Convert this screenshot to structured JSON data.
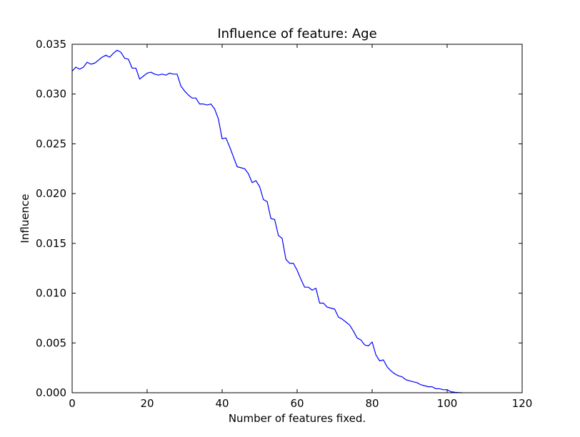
{
  "chart_data": {
    "type": "line",
    "title": "Influence of feature: Age",
    "xlabel": "Number of features fixed.",
    "ylabel": "Influence",
    "xlim": [
      0,
      120
    ],
    "ylim": [
      0,
      0.035
    ],
    "xticks": [
      0,
      20,
      40,
      60,
      80,
      100,
      120
    ],
    "xtick_labels": [
      "0",
      "20",
      "40",
      "60",
      "80",
      "100",
      "120"
    ],
    "yticks": [
      0,
      0.005,
      0.01,
      0.015,
      0.02,
      0.025,
      0.03,
      0.035
    ],
    "ytick_labels": [
      "0.000",
      "0.005",
      "0.010",
      "0.015",
      "0.020",
      "0.025",
      "0.030",
      "0.035"
    ],
    "grid": false,
    "series": [
      {
        "color": "#0000ff",
        "x": [
          0,
          1,
          2,
          3,
          4,
          5,
          6,
          7,
          8,
          9,
          10,
          11,
          12,
          13,
          14,
          15,
          16,
          17,
          18,
          19,
          20,
          21,
          22,
          23,
          24,
          25,
          26,
          27,
          28,
          29,
          30,
          31,
          32,
          33,
          34,
          35,
          36,
          37,
          38,
          39,
          40,
          41,
          42,
          43,
          44,
          45,
          46,
          47,
          48,
          49,
          50,
          51,
          52,
          53,
          54,
          55,
          56,
          57,
          58,
          59,
          60,
          61,
          62,
          63,
          64,
          65,
          66,
          67,
          68,
          69,
          70,
          71,
          72,
          73,
          74,
          75,
          76,
          77,
          78,
          79,
          80,
          81,
          82,
          83,
          84,
          85,
          86,
          87,
          88,
          89,
          90,
          91,
          92,
          93,
          94,
          95,
          96,
          97,
          98,
          99,
          100,
          101,
          102,
          103,
          104
        ],
        "y": [
          0.0323,
          0.0327,
          0.0325,
          0.0327,
          0.0332,
          0.033,
          0.0331,
          0.0334,
          0.0337,
          0.0339,
          0.0337,
          0.0341,
          0.0344,
          0.0342,
          0.0336,
          0.0335,
          0.0326,
          0.0326,
          0.0315,
          0.0318,
          0.0321,
          0.0322,
          0.032,
          0.0319,
          0.032,
          0.0319,
          0.0321,
          0.032,
          0.032,
          0.0308,
          0.0303,
          0.0299,
          0.0296,
          0.0296,
          0.029,
          0.029,
          0.0289,
          0.029,
          0.0285,
          0.0275,
          0.0255,
          0.0256,
          0.0247,
          0.0237,
          0.0227,
          0.0226,
          0.0225,
          0.022,
          0.0211,
          0.0213,
          0.0207,
          0.0194,
          0.0192,
          0.0175,
          0.0174,
          0.0158,
          0.0155,
          0.0134,
          0.013,
          0.013,
          0.0123,
          0.0114,
          0.0106,
          0.0106,
          0.0103,
          0.0105,
          0.009,
          0.009,
          0.0086,
          0.0085,
          0.0084,
          0.0076,
          0.0074,
          0.0071,
          0.0068,
          0.0062,
          0.0055,
          0.0053,
          0.0048,
          0.0047,
          0.0051,
          0.0038,
          0.0032,
          0.0033,
          0.0026,
          0.0022,
          0.0019,
          0.0017,
          0.0016,
          0.0013,
          0.0012,
          0.0011,
          0.001,
          0.0008,
          0.0007,
          0.0006,
          0.0006,
          0.0004,
          0.0004,
          0.0003,
          0.0003,
          0.0001,
          5e-05,
          2e-05,
          0.0
        ]
      }
    ]
  }
}
